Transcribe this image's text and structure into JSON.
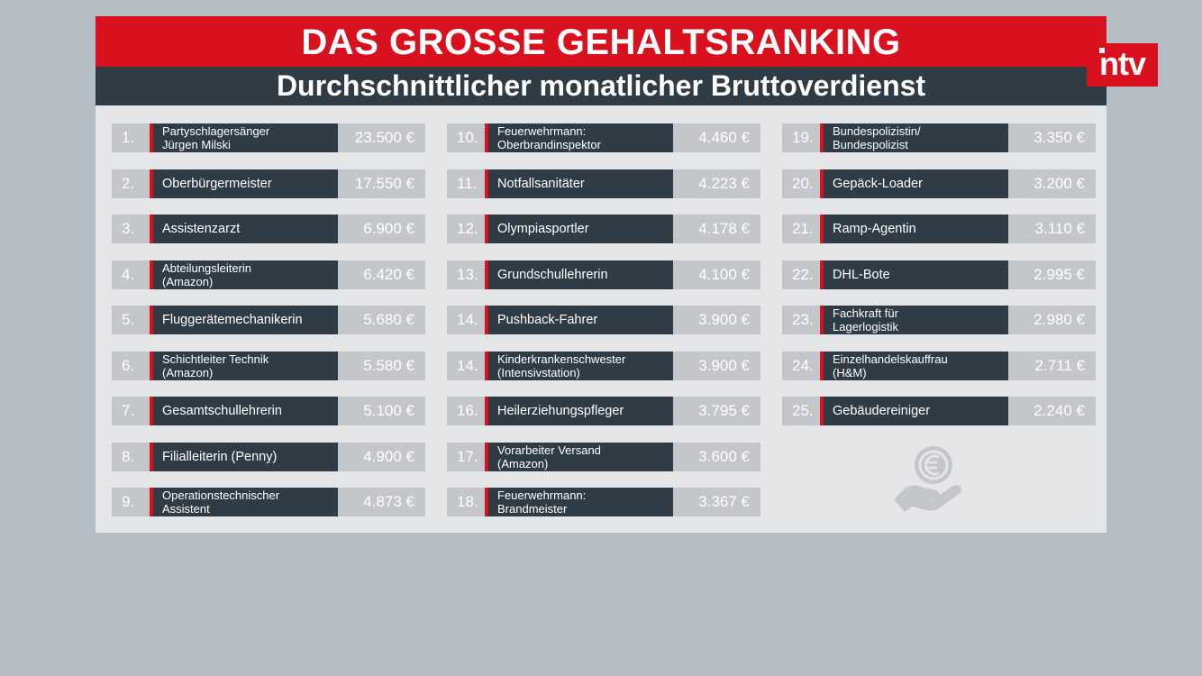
{
  "header": {
    "title": "DAS GROSSE GEHALTSRANKING",
    "subtitle": "Durchschnittlicher monatlicher Bruttoverdienst"
  },
  "logo": {
    "text": "ntv"
  },
  "columns": [
    [
      {
        "rank": "1.",
        "job": "Partyschlagersänger\nJürgen Milski",
        "salary": "23.500 €"
      },
      {
        "rank": "2.",
        "job": "Oberbürgermeister",
        "salary": "17.550 €"
      },
      {
        "rank": "3.",
        "job": "Assistenzarzt",
        "salary": "6.900 €"
      },
      {
        "rank": "4.",
        "job": "Abteilungsleiterin\n(Amazon)",
        "salary": "6.420 €"
      },
      {
        "rank": "5.",
        "job": "Fluggerätemechanikerin",
        "salary": "5.680 €"
      },
      {
        "rank": "6.",
        "job": "Schichtleiter Technik\n(Amazon)",
        "salary": "5.580 €"
      },
      {
        "rank": "7.",
        "job": "Gesamtschullehrerin",
        "salary": "5.100 €"
      },
      {
        "rank": "8.",
        "job": "Filialleiterin (Penny)",
        "salary": "4.900 €"
      },
      {
        "rank": "9.",
        "job": "Operationstechnischer\nAssistent",
        "salary": "4.873 €"
      }
    ],
    [
      {
        "rank": "10.",
        "job": "Feuerwehrmann:\nOberbrandinspektor",
        "salary": "4.460 €"
      },
      {
        "rank": "11.",
        "job": "Notfallsanitäter",
        "salary": "4.223 €"
      },
      {
        "rank": "12.",
        "job": "Olympiasportler",
        "salary": "4.178 €"
      },
      {
        "rank": "13.",
        "job": "Grundschullehrerin",
        "salary": "4.100 €"
      },
      {
        "rank": "14.",
        "job": "Pushback-Fahrer",
        "salary": "3.900 €"
      },
      {
        "rank": "14.",
        "job": "Kinderkrankenschwester\n(Intensivstation)",
        "salary": "3.900 €"
      },
      {
        "rank": "16.",
        "job": "Heilerziehungspfleger",
        "salary": "3.795 €"
      },
      {
        "rank": "17.",
        "job": "Vorarbeiter Versand\n(Amazon)",
        "salary": "3.600 €"
      },
      {
        "rank": "18.",
        "job": "Feuerwehrmann:\nBrandmeister",
        "salary": "3.367 €"
      }
    ],
    [
      {
        "rank": "19.",
        "job": "Bundespolizistin/\nBundespolizist",
        "salary": "3.350 €"
      },
      {
        "rank": "20.",
        "job": "Gepäck-Loader",
        "salary": "3.200 €"
      },
      {
        "rank": "21.",
        "job": "Ramp-Agentin",
        "salary": "3.110 €"
      },
      {
        "rank": "22.",
        "job": "DHL-Bote",
        "salary": "2.995 €"
      },
      {
        "rank": "23.",
        "job": "Fachkraft für\nLagerlogistik",
        "salary": "2.980 €"
      },
      {
        "rank": "24.",
        "job": "Einzelhandelskauffrau\n(H&M)",
        "salary": "2.711 €"
      },
      {
        "rank": "25.",
        "job": "Gebäudereiniger",
        "salary": "2.240 €"
      }
    ]
  ],
  "icon": {
    "name": "euro-hand-icon",
    "color": "#c3c7ca"
  }
}
